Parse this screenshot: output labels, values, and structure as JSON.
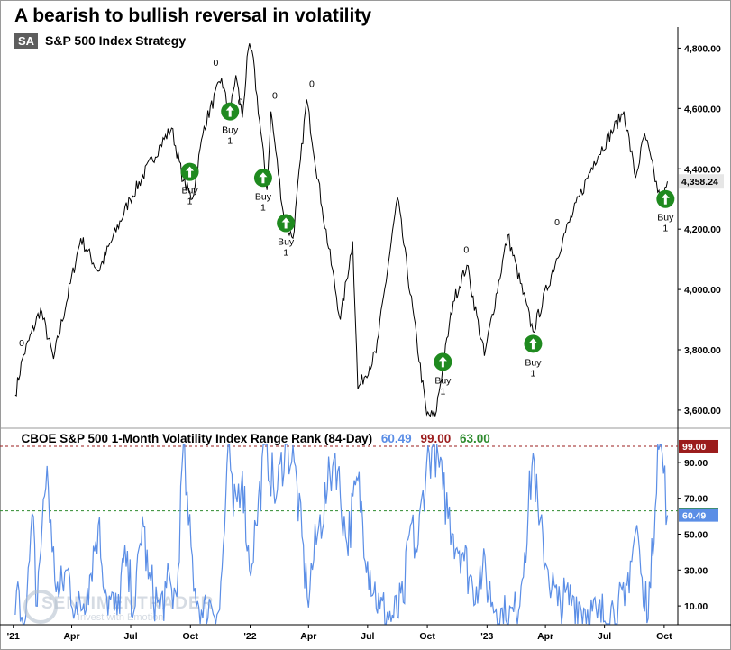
{
  "title": "A bearish to bullish reversal in volatility",
  "symbol_badge": "SA",
  "subtitle": "S&P 500 Index  Strategy",
  "indicator": {
    "name": "_CBOE S&P 500 1-Month Volatility Index Range Rank (84-Day)",
    "current_value": "60.49",
    "upper_threshold": "99.00",
    "lower_threshold": "63.00"
  },
  "watermark": {
    "name": "SENTIMENTRADER",
    "tagline": "Invest with Emotion"
  },
  "colors": {
    "price_line": "#000000",
    "indicator_line": "#5b8ee6",
    "upper_threshold": "#9b1c1c",
    "lower_threshold": "#2e8b2e",
    "buy_signal": "#1f8a1f",
    "current_value_label": "#5b8ee6"
  },
  "chart_data": [
    {
      "type": "line",
      "series": [
        {
          "name": "S&P 500 Index",
          "points": [
            [
              "2021-01-04",
              3650
            ],
            [
              "2021-01-15",
              3770
            ],
            [
              "2021-02-12",
              3935
            ],
            [
              "2021-03-04",
              3770
            ],
            [
              "2021-04-15",
              4170
            ],
            [
              "2021-05-12",
              4060
            ],
            [
              "2021-06-30",
              4300
            ],
            [
              "2021-08-16",
              4480
            ],
            [
              "2021-09-02",
              4535
            ],
            [
              "2021-09-20",
              4360
            ],
            [
              "2021-10-04",
              4300
            ],
            [
              "2021-10-22",
              4540
            ],
            [
              "2021-11-18",
              4700
            ],
            [
              "2021-11-30",
              4570
            ],
            [
              "2021-12-10",
              4710
            ],
            [
              "2021-12-20",
              4570
            ],
            [
              "2021-12-29",
              4795
            ],
            [
              "2022-01-04",
              4790
            ],
            [
              "2022-01-27",
              4330
            ],
            [
              "2022-02-02",
              4590
            ],
            [
              "2022-02-23",
              4220
            ],
            [
              "2022-03-08",
              4170
            ],
            [
              "2022-03-29",
              4630
            ],
            [
              "2022-04-22",
              4270
            ],
            [
              "2022-05-20",
              3900
            ],
            [
              "2022-06-08",
              4160
            ],
            [
              "2022-06-16",
              3670
            ],
            [
              "2022-07-14",
              3790
            ],
            [
              "2022-08-16",
              4305
            ],
            [
              "2022-09-30",
              3585
            ],
            [
              "2022-10-13",
              3580
            ],
            [
              "2022-11-10",
              3960
            ],
            [
              "2022-12-01",
              4080
            ],
            [
              "2022-12-28",
              3780
            ],
            [
              "2023-02-02",
              4180
            ],
            [
              "2023-03-13",
              3860
            ],
            [
              "2023-04-28",
              4170
            ],
            [
              "2023-06-15",
              4425
            ],
            [
              "2023-07-31",
              4590
            ],
            [
              "2023-08-18",
              4370
            ],
            [
              "2023-09-01",
              4515
            ],
            [
              "2023-09-27",
              4275
            ],
            [
              "2023-10-06",
              4358.24
            ]
          ]
        }
      ],
      "signals": [
        {
          "date": "2021-01-14",
          "label": "0",
          "type": "zero"
        },
        {
          "date": "2021-09-30",
          "label": "Buy",
          "count": "1",
          "type": "buy",
          "price": 4390
        },
        {
          "date": "2021-11-09",
          "label": "0",
          "type": "zero"
        },
        {
          "date": "2021-12-01",
          "label": "Buy",
          "count": "1",
          "type": "buy",
          "price": 4590
        },
        {
          "date": "2021-12-17",
          "label": "0",
          "type": "zero"
        },
        {
          "date": "2022-01-21",
          "label": "Buy",
          "count": "1",
          "type": "buy",
          "price": 4370
        },
        {
          "date": "2022-02-08",
          "label": "0",
          "type": "zero"
        },
        {
          "date": "2022-02-25",
          "label": "Buy",
          "count": "1",
          "type": "buy",
          "price": 4220
        },
        {
          "date": "2022-04-06",
          "label": "0",
          "type": "zero"
        },
        {
          "date": "2022-10-25",
          "label": "Buy",
          "count": "1",
          "type": "buy",
          "price": 3760
        },
        {
          "date": "2022-11-30",
          "label": "0",
          "type": "zero"
        },
        {
          "date": "2023-03-13",
          "label": "Buy",
          "count": "1",
          "type": "buy",
          "price": 3820
        },
        {
          "date": "2023-04-19",
          "label": "0",
          "type": "zero"
        },
        {
          "date": "2023-10-03",
          "label": "Buy",
          "count": "1",
          "type": "buy",
          "price": 4300
        }
      ],
      "y_ticks": [
        "3,600.00",
        "3,800.00",
        "4,000.00",
        "4,200.00",
        "4,400.00",
        "4,600.00",
        "4,800.00"
      ],
      "y_tick_values": [
        3600,
        3800,
        4000,
        4200,
        4400,
        4600,
        4800
      ],
      "last_value_label": "4,358.24",
      "ylim": [
        3540,
        4870
      ],
      "grid": false
    },
    {
      "type": "line",
      "series": [
        {
          "name": "_CBOE S&P 500 1-Month Volatility Index Range Rank (84-Day)",
          "points": [
            [
              "2021-01-04",
              5
            ],
            [
              "2021-01-10",
              18
            ],
            [
              "2021-01-20",
              3
            ],
            [
              "2021-02-01",
              60
            ],
            [
              "2021-02-05",
              10
            ],
            [
              "2021-02-22",
              88
            ],
            [
              "2021-03-02",
              40
            ],
            [
              "2021-03-12",
              15
            ],
            [
              "2021-03-25",
              30
            ],
            [
              "2021-04-10",
              5
            ],
            [
              "2021-04-25",
              20
            ],
            [
              "2021-05-12",
              55
            ],
            [
              "2021-05-25",
              15
            ],
            [
              "2021-06-10",
              5
            ],
            [
              "2021-06-20",
              35
            ],
            [
              "2021-07-08",
              10
            ],
            [
              "2021-07-19",
              60
            ],
            [
              "2021-07-28",
              25
            ],
            [
              "2021-08-15",
              8
            ],
            [
              "2021-08-25",
              20
            ],
            [
              "2021-09-10",
              15
            ],
            [
              "2021-09-20",
              100
            ],
            [
              "2021-09-28",
              55
            ],
            [
              "2021-10-08",
              20
            ],
            [
              "2021-10-20",
              3
            ],
            [
              "2021-11-01",
              12
            ],
            [
              "2021-11-15",
              8
            ],
            [
              "2021-11-30",
              100
            ],
            [
              "2021-12-06",
              60
            ],
            [
              "2021-12-20",
              85
            ],
            [
              "2021-12-31",
              30
            ],
            [
              "2022-01-10",
              55
            ],
            [
              "2022-01-25",
              100
            ],
            [
              "2022-02-10",
              70
            ],
            [
              "2022-02-24",
              100
            ],
            [
              "2022-03-10",
              90
            ],
            [
              "2022-03-30",
              15
            ],
            [
              "2022-04-15",
              50
            ],
            [
              "2022-04-30",
              75
            ],
            [
              "2022-05-12",
              95
            ],
            [
              "2022-05-30",
              45
            ],
            [
              "2022-06-16",
              80
            ],
            [
              "2022-07-01",
              35
            ],
            [
              "2022-07-20",
              8
            ],
            [
              "2022-08-10",
              3
            ],
            [
              "2022-08-25",
              12
            ],
            [
              "2022-09-05",
              55
            ],
            [
              "2022-09-15",
              40
            ],
            [
              "2022-09-30",
              90
            ],
            [
              "2022-10-12",
              100
            ],
            [
              "2022-10-25",
              75
            ],
            [
              "2022-11-10",
              50
            ],
            [
              "2022-11-25",
              40
            ],
            [
              "2022-12-10",
              20
            ],
            [
              "2022-12-25",
              30
            ],
            [
              "2023-01-15",
              8
            ],
            [
              "2023-01-30",
              2
            ],
            [
              "2023-02-15",
              5
            ],
            [
              "2023-02-28",
              40
            ],
            [
              "2023-03-13",
              95
            ],
            [
              "2023-03-22",
              55
            ],
            [
              "2023-04-05",
              30
            ],
            [
              "2023-04-20",
              10
            ],
            [
              "2023-05-15",
              15
            ],
            [
              "2023-06-01",
              8
            ],
            [
              "2023-06-20",
              3
            ],
            [
              "2023-07-15",
              8
            ],
            [
              "2023-08-01",
              10
            ],
            [
              "2023-08-10",
              35
            ],
            [
              "2023-08-20",
              55
            ],
            [
              "2023-08-30",
              10
            ],
            [
              "2023-09-10",
              20
            ],
            [
              "2023-09-21",
              100
            ],
            [
              "2023-09-28",
              95
            ],
            [
              "2023-10-06",
              60.49
            ]
          ]
        }
      ],
      "y_ticks": [
        "10.00",
        "30.00",
        "50.00",
        "70.00",
        "90.00"
      ],
      "y_tick_values": [
        10,
        30,
        50,
        70,
        90
      ],
      "upper_label": "99.00",
      "lower_label": "63.00",
      "current_label": "60.49",
      "reference_lines": [
        99,
        63
      ],
      "ylim": [
        0,
        100
      ],
      "grid": false
    }
  ],
  "x_axis": {
    "ticks": [
      {
        "date": "2021-01-01",
        "label": "'21"
      },
      {
        "date": "2021-04-01",
        "label": "Apr"
      },
      {
        "date": "2021-07-01",
        "label": "Jul"
      },
      {
        "date": "2021-10-01",
        "label": "Oct"
      },
      {
        "date": "2022-01-01",
        "label": "'22"
      },
      {
        "date": "2022-04-01",
        "label": "Apr"
      },
      {
        "date": "2022-07-01",
        "label": "Jul"
      },
      {
        "date": "2022-10-01",
        "label": "Oct"
      },
      {
        "date": "2023-01-01",
        "label": "'23"
      },
      {
        "date": "2023-04-01",
        "label": "Apr"
      },
      {
        "date": "2023-07-01",
        "label": "Jul"
      },
      {
        "date": "2023-10-01",
        "label": "Oct"
      }
    ],
    "range": [
      "2020-12-31",
      "2023-10-22"
    ]
  }
}
